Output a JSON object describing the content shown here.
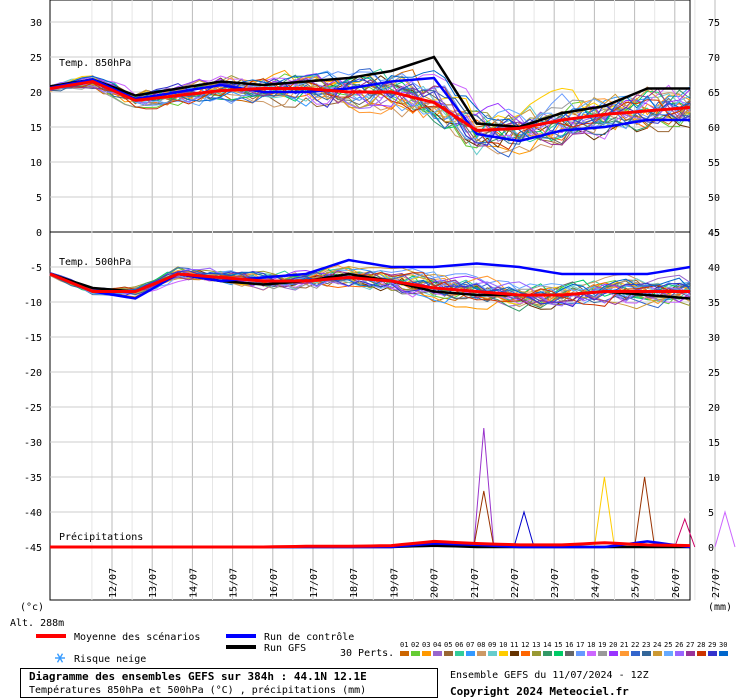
{
  "chart_data": [
    {
      "type": "line",
      "panel": "temp850",
      "label": "Temp. 850hPa",
      "left_axis_ticks": [
        30,
        25,
        20,
        15,
        10,
        5,
        0
      ],
      "right_axis_ticks": [
        75,
        70,
        65,
        60,
        55,
        50,
        45
      ],
      "ylim": [
        0,
        30
      ],
      "x": [
        "12/07",
        "13/07",
        "14/07",
        "15/07",
        "16/07",
        "17/07",
        "18/07",
        "19/07",
        "20/07",
        "21/07",
        "22/07",
        "23/07",
        "24/07",
        "25/07",
        "26/07",
        "27/07"
      ],
      "series": [
        {
          "name": "Moyenne des scénarios",
          "color": "#ff0000",
          "values": [
            20.5,
            21.5,
            18.8,
            19.5,
            20.2,
            20.5,
            20.5,
            20.0,
            20.0,
            18.5,
            14.5,
            14.8,
            16.0,
            16.8,
            17.3,
            17.8
          ]
        },
        {
          "name": "Run de contrôle",
          "color": "#0000ff",
          "values": [
            20.6,
            21.8,
            19.0,
            20.0,
            21.0,
            20.0,
            20.0,
            20.5,
            21.5,
            22.0,
            14.0,
            13.0,
            14.5,
            15.0,
            16.0,
            16.0
          ]
        },
        {
          "name": "Run GFS",
          "color": "#000000",
          "values": [
            20.8,
            21.8,
            19.5,
            20.5,
            21.5,
            21.0,
            21.5,
            22.0,
            23.0,
            25.0,
            15.5,
            15.0,
            17.0,
            18.0,
            20.5,
            20.5
          ]
        }
      ]
    },
    {
      "type": "line",
      "panel": "temp500",
      "label": "Temp. 500hPa",
      "left_axis_ticks": [
        -5,
        -10,
        -15,
        -20,
        -25,
        -30,
        -35,
        -40,
        -45
      ],
      "right_axis_ticks": [
        45,
        40,
        35,
        30,
        25,
        20,
        15,
        10,
        5,
        0
      ],
      "ylim": [
        -45,
        0
      ],
      "x": [
        "12/07",
        "13/07",
        "14/07",
        "15/07",
        "16/07",
        "17/07",
        "18/07",
        "19/07",
        "20/07",
        "21/07",
        "22/07",
        "23/07",
        "24/07",
        "25/07",
        "26/07",
        "27/07"
      ],
      "series": [
        {
          "name": "Moyenne des scénarios",
          "color": "#ff0000",
          "values": [
            -6.0,
            -8.5,
            -8.5,
            -6.0,
            -6.5,
            -7.0,
            -7.0,
            -6.5,
            -7.0,
            -8.0,
            -8.5,
            -9.0,
            -9.0,
            -8.5,
            -8.5,
            -8.5
          ]
        },
        {
          "name": "Run de contrôle",
          "color": "#0000ff",
          "values": [
            -6.0,
            -8.5,
            -9.5,
            -6.0,
            -7.0,
            -6.5,
            -6.0,
            -4.0,
            -5.0,
            -5.0,
            -4.5,
            -5.0,
            -6.0,
            -6.0,
            -6.0,
            -5.0
          ]
        },
        {
          "name": "Run GFS",
          "color": "#000000",
          "values": [
            -6.0,
            -8.0,
            -8.5,
            -6.0,
            -7.0,
            -7.5,
            -7.0,
            -6.0,
            -7.0,
            -8.5,
            -9.0,
            -9.0,
            -9.0,
            -8.5,
            -9.0,
            -9.5
          ]
        }
      ]
    },
    {
      "type": "line",
      "panel": "precip",
      "label": "Précipitations",
      "right_axis_ticks": [
        15,
        10,
        5,
        0
      ],
      "ylim": [
        0,
        15
      ],
      "x": [
        "12/07",
        "13/07",
        "14/07",
        "15/07",
        "16/07",
        "17/07",
        "18/07",
        "19/07",
        "20/07",
        "21/07",
        "22/07",
        "23/07",
        "24/07",
        "25/07",
        "26/07",
        "27/07"
      ],
      "series": [
        {
          "name": "Moyenne des scénarios",
          "color": "#ff0000",
          "values": [
            0,
            0,
            0,
            0,
            0,
            0,
            0.1,
            0.1,
            0.2,
            0.8,
            0.5,
            0.3,
            0.3,
            0.6,
            0.3,
            0.2
          ]
        },
        {
          "name": "Run de contrôle",
          "color": "#0000ff",
          "values": [
            0,
            0,
            0,
            0,
            0,
            0,
            0,
            0,
            0,
            0.5,
            0.3,
            0,
            0,
            0,
            0.8,
            0
          ]
        },
        {
          "name": "Run GFS",
          "color": "#000000",
          "values": [
            0,
            0,
            0,
            0,
            0,
            0,
            0,
            0,
            0,
            0.2,
            0,
            0,
            0,
            0,
            0,
            0
          ]
        }
      ],
      "perturbation_peaks": [
        {
          "day": "21/07",
          "value": 17,
          "color": "#9933cc"
        },
        {
          "day": "21/07",
          "value": 8,
          "color": "#993300"
        },
        {
          "day": "22/07",
          "value": 5,
          "color": "#0000cc"
        },
        {
          "day": "24/07",
          "value": 10,
          "color": "#ffcc00"
        },
        {
          "day": "25/07",
          "value": 10,
          "color": "#993300"
        },
        {
          "day": "26/07",
          "value": 4,
          "color": "#cc0066"
        },
        {
          "day": "27/07",
          "value": 5,
          "color": "#cc66ff"
        }
      ]
    }
  ],
  "x_axis": {
    "labels": [
      "12/07",
      "13/07",
      "14/07",
      "15/07",
      "16/07",
      "17/07",
      "18/07",
      "19/07",
      "20/07",
      "21/07",
      "22/07",
      "23/07",
      "24/07",
      "25/07",
      "26/07",
      "27/07"
    ],
    "left_unit": "(°c)",
    "right_unit": "(mm)",
    "altitude": "Alt. 288m"
  },
  "legend": {
    "mean": "Moyenne des scénarios",
    "control": "Run de contrôle",
    "gfs": "Run GFS",
    "perts_label": "30 Perts.",
    "snow": "Risque neige",
    "pert_numbers": [
      "01",
      "02",
      "03",
      "04",
      "05",
      "06",
      "07",
      "08",
      "09",
      "10",
      "11",
      "12",
      "13",
      "14",
      "15",
      "16",
      "17",
      "18",
      "19",
      "20",
      "21",
      "22",
      "23",
      "24",
      "25",
      "26",
      "27",
      "28",
      "29",
      "30"
    ],
    "pert_colors": [
      "#cc6600",
      "#66cc33",
      "#ff9900",
      "#9966cc",
      "#996633",
      "#33cc99",
      "#3399ff",
      "#cc9966",
      "#66cccc",
      "#ffcc00",
      "#663300",
      "#ff6600",
      "#999933",
      "#339966",
      "#00cc66",
      "#666666",
      "#6699ff",
      "#cc66ff",
      "#999999",
      "#9933ff",
      "#ff9933",
      "#3366cc",
      "#336699",
      "#cc9933",
      "#66aaff",
      "#9966ff",
      "#993399",
      "#cc3300",
      "#3333cc",
      "#0066cc"
    ],
    "colors": {
      "mean": "#ff0000",
      "control": "#0000ff",
      "gfs": "#000000"
    }
  },
  "footer": {
    "title": "Diagramme des ensembles GEFS sur 384h : 44.1N 12.1E",
    "subtitle": "Températures 850hPa et 500hPa (°C) , précipitations (mm)",
    "run_info": "Ensemble GEFS du 11/07/2024 - 12Z",
    "copyright": "Copyright 2024 Meteociel.fr"
  }
}
